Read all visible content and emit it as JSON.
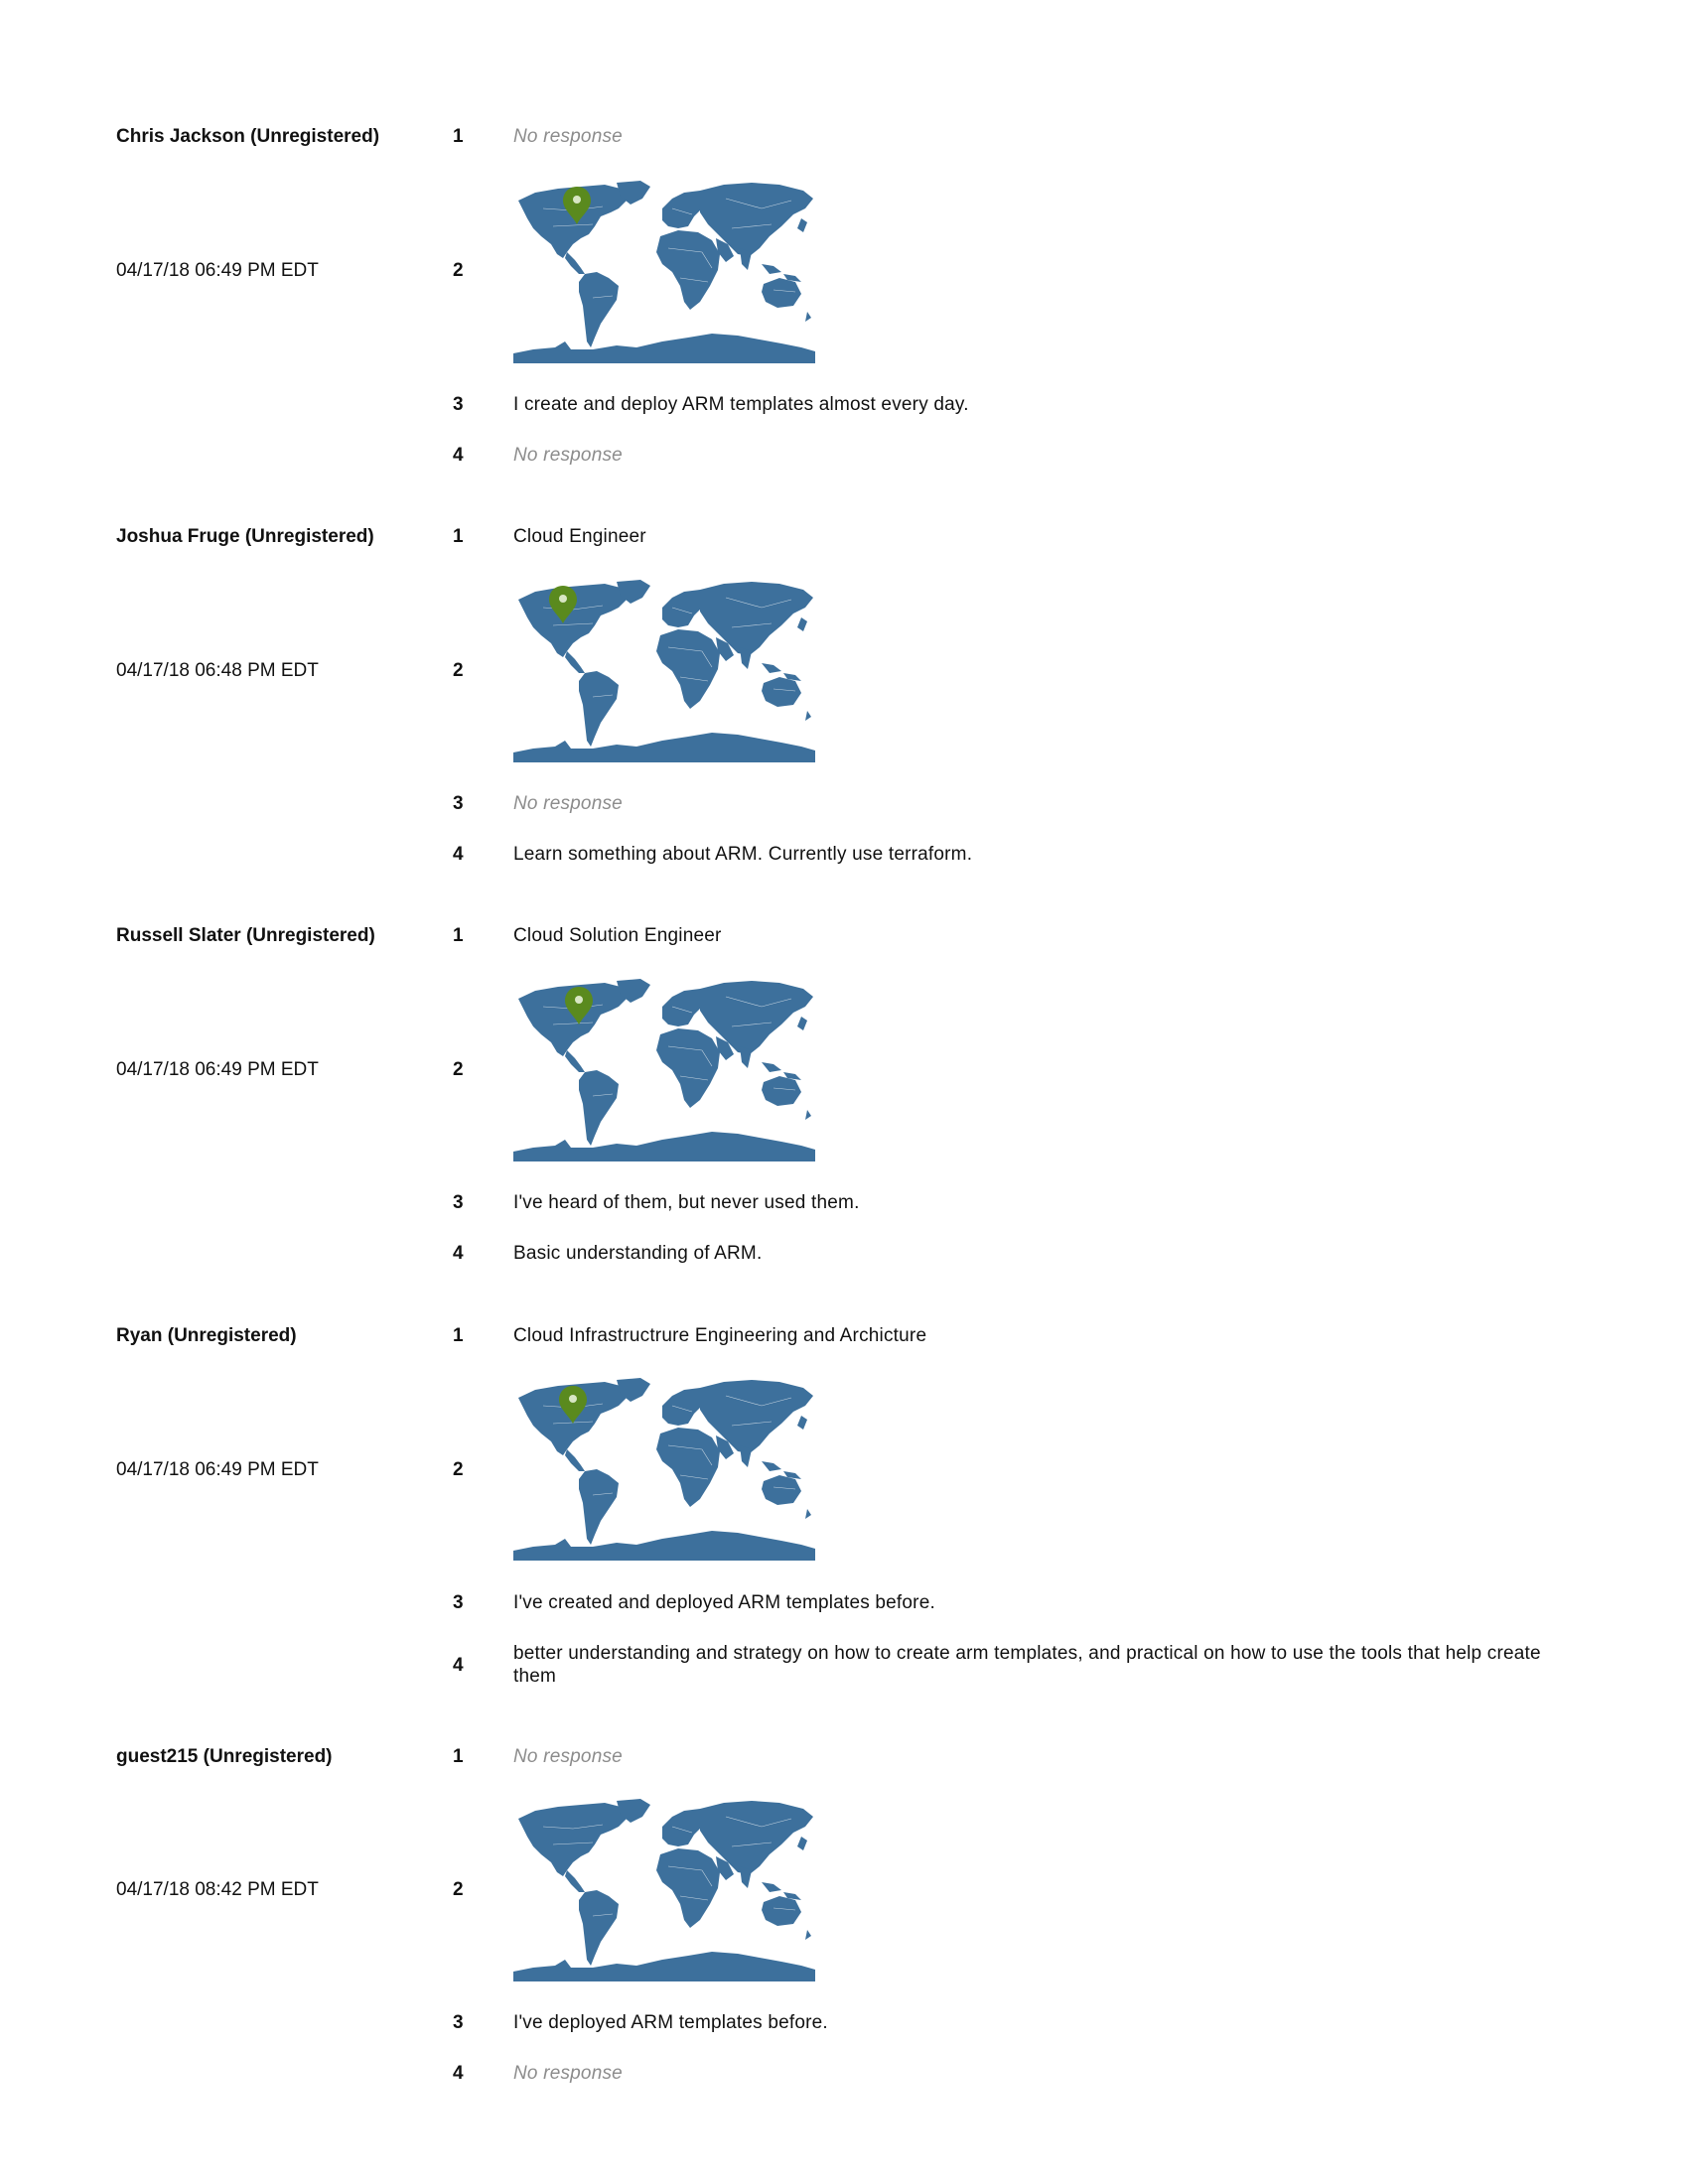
{
  "responses": [
    {
      "name": "Chris Jackson (Unregistered)",
      "date": "04/17/18 06:49 PM EDT",
      "q1": {
        "num": "1",
        "text": "No response",
        "empty": true
      },
      "q2": {
        "num": "2",
        "map": "world-map",
        "pin": true,
        "pin_color": "#5a8a1e",
        "map_color": "#3d709c"
      },
      "q3": {
        "num": "3",
        "text": "I create and deploy ARM templates almost every day.",
        "empty": false
      },
      "q4": {
        "num": "4",
        "text": "No response",
        "empty": true
      }
    },
    {
      "name": "Joshua Fruge (Unregistered)",
      "date": "04/17/18 06:48 PM EDT",
      "q1": {
        "num": "1",
        "text": "Cloud Engineer",
        "empty": false
      },
      "q2": {
        "num": "2",
        "map": "world-map",
        "pin": true,
        "pin_color": "#5a8a1e",
        "map_color": "#3d709c"
      },
      "q3": {
        "num": "3",
        "text": "No response",
        "empty": true
      },
      "q4": {
        "num": "4",
        "text": "Learn something about ARM. Currently use terraform.",
        "empty": false
      }
    },
    {
      "name": "Russell Slater (Unregistered)",
      "date": "04/17/18 06:49 PM EDT",
      "q1": {
        "num": "1",
        "text": "Cloud Solution Engineer",
        "empty": false
      },
      "q2": {
        "num": "2",
        "map": "world-map",
        "pin": true,
        "pin_color": "#5a8a1e",
        "map_color": "#3d709c"
      },
      "q3": {
        "num": "3",
        "text": "I've heard of them, but never used them.",
        "empty": false
      },
      "q4": {
        "num": "4",
        "text": "Basic understanding of ARM.",
        "empty": false
      }
    },
    {
      "name": "Ryan (Unregistered)",
      "date": "04/17/18 06:49 PM EDT",
      "q1": {
        "num": "1",
        "text": "Cloud Infrastructrure Engineering and Archicture",
        "empty": false
      },
      "q2": {
        "num": "2",
        "map": "world-map",
        "pin": true,
        "pin_color": "#5a8a1e",
        "map_color": "#3d709c"
      },
      "q3": {
        "num": "3",
        "text": "I've created and deployed ARM templates before.",
        "empty": false
      },
      "q4": {
        "num": "4",
        "text": "better understanding and strategy on how to create arm templates, and practical on how to use the tools that help create them",
        "empty": false
      }
    },
    {
      "name": "guest215 (Unregistered)",
      "date": "04/17/18 08:42 PM EDT",
      "q1": {
        "num": "1",
        "text": "No response",
        "empty": true
      },
      "q2": {
        "num": "2",
        "map": "world-map",
        "pin": false,
        "map_color": "#3d709c"
      },
      "q3": {
        "num": "3",
        "text": "I've deployed ARM templates before.",
        "empty": false
      },
      "q4": {
        "num": "4",
        "text": "No response",
        "empty": true
      }
    }
  ]
}
